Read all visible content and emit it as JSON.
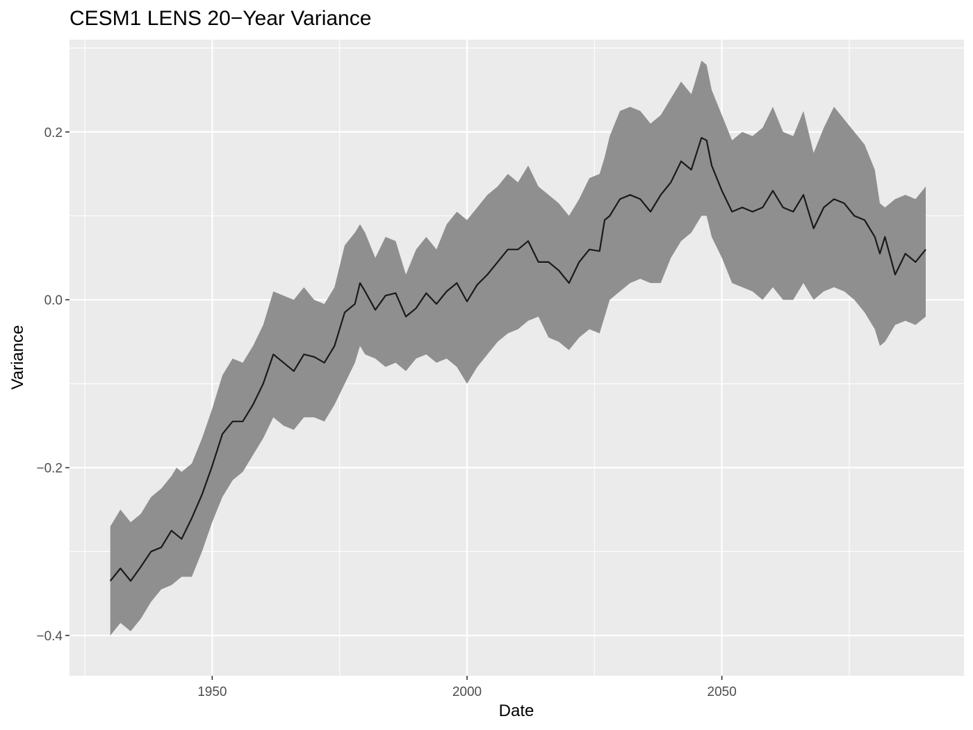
{
  "chart_data": {
    "type": "line",
    "title": "CESM1 LENS 20−Year Variance",
    "xlabel": "Date",
    "ylabel": "Variance",
    "x_ticks": [
      "1950",
      "2000",
      "2050"
    ],
    "y_ticks": [
      "−0.4",
      "−0.2",
      "0.0",
      "0.2"
    ],
    "xlim": [
      1922,
      2097.5
    ],
    "ylim": [
      -0.448,
      0.31
    ],
    "grid": true,
    "legend": "none",
    "colors": {
      "panel": "#ebebeb",
      "grid": "#ffffff",
      "ribbon": "#8f8f8f",
      "line": "#1a1a1a"
    },
    "series": [
      {
        "x": [
          1930,
          1932,
          1934,
          1936,
          1938,
          1940,
          1942,
          1943,
          1944,
          1946,
          1948,
          1950,
          1952,
          1954,
          1956,
          1958,
          1960,
          1962,
          1964,
          1966,
          1968,
          1970,
          1972,
          1974,
          1976,
          1978,
          1979,
          1980,
          1982,
          1984,
          1986,
          1988,
          1990,
          1992,
          1994,
          1996,
          1998,
          2000,
          2002,
          2004,
          2006,
          2008,
          2010,
          2012,
          2014,
          2016,
          2018,
          2020,
          2022,
          2024,
          2026,
          2027,
          2028,
          2030,
          2032,
          2034,
          2036,
          2038,
          2040,
          2042,
          2044,
          2046,
          2047,
          2048,
          2050,
          2052,
          2054,
          2056,
          2058,
          2060,
          2062,
          2064,
          2066,
          2068,
          2070,
          2072,
          2074,
          2076,
          2078,
          2080,
          2081,
          2082,
          2084,
          2086,
          2088,
          2090
        ],
        "mean": [
          -0.335,
          -0.32,
          -0.335,
          -0.318,
          -0.3,
          -0.295,
          -0.275,
          -0.28,
          -0.285,
          -0.26,
          -0.232,
          -0.198,
          -0.16,
          -0.145,
          -0.145,
          -0.125,
          -0.1,
          -0.065,
          -0.075,
          -0.085,
          -0.065,
          -0.068,
          -0.075,
          -0.055,
          -0.015,
          -0.005,
          0.02,
          0.01,
          -0.012,
          0.005,
          0.008,
          -0.02,
          -0.01,
          0.008,
          -0.005,
          0.01,
          0.02,
          -0.002,
          0.018,
          0.03,
          0.045,
          0.06,
          0.06,
          0.07,
          0.045,
          0.045,
          0.035,
          0.02,
          0.045,
          0.06,
          0.058,
          0.095,
          0.1,
          0.12,
          0.125,
          0.12,
          0.105,
          0.125,
          0.14,
          0.165,
          0.155,
          0.193,
          0.19,
          0.16,
          0.13,
          0.105,
          0.11,
          0.105,
          0.11,
          0.13,
          0.11,
          0.105,
          0.125,
          0.085,
          0.11,
          0.12,
          0.115,
          0.1,
          0.095,
          0.075,
          0.055,
          0.075,
          0.03,
          0.055,
          0.045,
          0.06
        ],
        "lower": [
          -0.4,
          -0.385,
          -0.395,
          -0.38,
          -0.36,
          -0.345,
          -0.34,
          -0.335,
          -0.33,
          -0.33,
          -0.3,
          -0.265,
          -0.235,
          -0.215,
          -0.205,
          -0.185,
          -0.165,
          -0.14,
          -0.15,
          -0.155,
          -0.14,
          -0.14,
          -0.145,
          -0.125,
          -0.1,
          -0.075,
          -0.055,
          -0.065,
          -0.07,
          -0.08,
          -0.075,
          -0.085,
          -0.07,
          -0.065,
          -0.075,
          -0.07,
          -0.08,
          -0.1,
          -0.08,
          -0.065,
          -0.05,
          -0.04,
          -0.035,
          -0.025,
          -0.02,
          -0.045,
          -0.05,
          -0.06,
          -0.045,
          -0.035,
          -0.04,
          -0.02,
          0.0,
          0.01,
          0.02,
          0.025,
          0.02,
          0.02,
          0.05,
          0.07,
          0.08,
          0.1,
          0.1,
          0.075,
          0.05,
          0.02,
          0.015,
          0.01,
          0.0,
          0.015,
          0.0,
          0.0,
          0.02,
          0.0,
          0.01,
          0.015,
          0.01,
          0.0,
          -0.015,
          -0.035,
          -0.055,
          -0.05,
          -0.03,
          -0.025,
          -0.03,
          -0.02
        ],
        "upper": [
          -0.27,
          -0.25,
          -0.265,
          -0.255,
          -0.235,
          -0.225,
          -0.21,
          -0.2,
          -0.205,
          -0.195,
          -0.165,
          -0.13,
          -0.09,
          -0.07,
          -0.075,
          -0.055,
          -0.03,
          0.01,
          0.005,
          0.0,
          0.015,
          0.0,
          -0.005,
          0.015,
          0.065,
          0.08,
          0.09,
          0.08,
          0.05,
          0.075,
          0.07,
          0.03,
          0.06,
          0.075,
          0.06,
          0.09,
          0.105,
          0.095,
          0.11,
          0.125,
          0.135,
          0.15,
          0.14,
          0.16,
          0.135,
          0.125,
          0.115,
          0.1,
          0.12,
          0.145,
          0.15,
          0.17,
          0.195,
          0.225,
          0.23,
          0.225,
          0.21,
          0.22,
          0.24,
          0.26,
          0.245,
          0.285,
          0.28,
          0.25,
          0.22,
          0.19,
          0.2,
          0.195,
          0.205,
          0.23,
          0.2,
          0.195,
          0.225,
          0.175,
          0.205,
          0.23,
          0.215,
          0.2,
          0.185,
          0.155,
          0.115,
          0.11,
          0.12,
          0.125,
          0.12,
          0.135
        ]
      }
    ]
  }
}
